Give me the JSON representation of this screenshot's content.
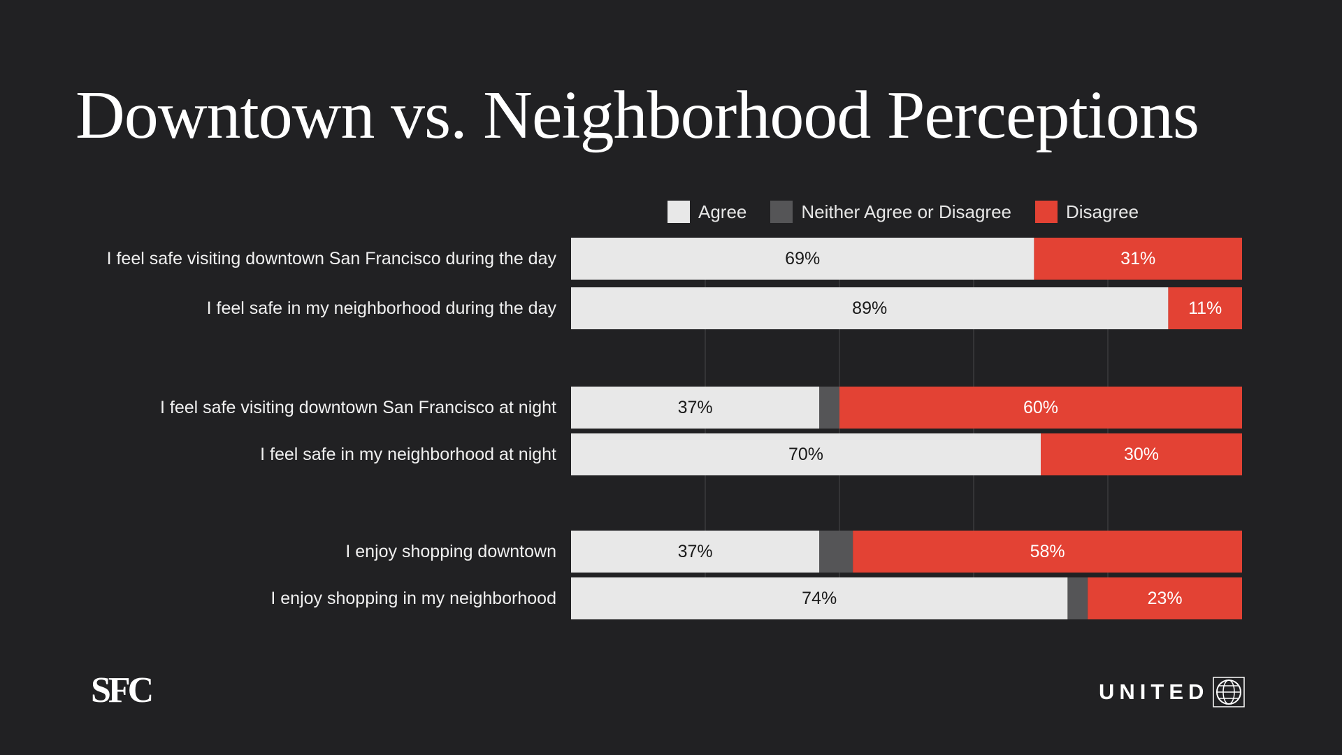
{
  "chart_data": {
    "type": "bar",
    "orientation": "horizontal",
    "stacked": true,
    "title": "Downtown vs. Neighborhood Perceptions",
    "xlim": [
      0,
      100
    ],
    "legend_position": "top-right",
    "grid": true,
    "categories": [
      "I feel safe visiting downtown San Francisco during the day",
      "I feel safe in my neighborhood during the day",
      "I feel safe visiting downtown San Francisco at night",
      "I feel safe in my neighborhood at night",
      "I enjoy shopping downtown",
      "I enjoy shopping in my neighborhood"
    ],
    "series": [
      {
        "name": "Agree",
        "color": "#e8e8e8",
        "label_color": "#1a1a1a",
        "values": [
          69,
          89,
          37,
          70,
          37,
          74
        ]
      },
      {
        "name": "Neither Agree or Disagree",
        "color": "#555557",
        "label_color": "#ffffff",
        "values": [
          0,
          0,
          3,
          0,
          5,
          3
        ]
      },
      {
        "name": "Disagree",
        "color": "#e34234",
        "label_color": "#ffffff",
        "values": [
          31,
          11,
          60,
          30,
          58,
          23
        ]
      }
    ],
    "data_labels": [
      [
        "69%",
        "",
        "31%"
      ],
      [
        "89%",
        "",
        "11%"
      ],
      [
        "37%",
        "",
        "60%"
      ],
      [
        "70%",
        "",
        "30%"
      ],
      [
        "37%",
        "",
        "58%"
      ],
      [
        "74%",
        "",
        "23%"
      ]
    ]
  },
  "logos": {
    "left": "SFC",
    "right": "UNITED"
  },
  "icons": {
    "right_logo_mark": "united-globe-icon"
  }
}
